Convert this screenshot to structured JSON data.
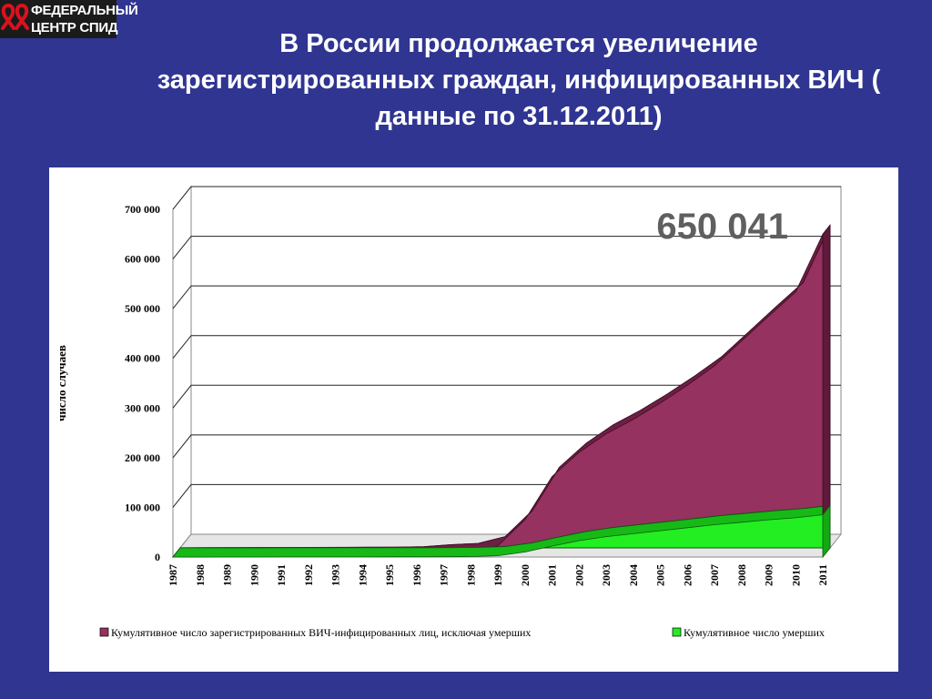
{
  "logo": {
    "line1": "ФЕДЕРАЛЬНЫЙ",
    "line2": "ЦЕНТР СПИД",
    "ribbon_icon": "red-aids-ribbon-icon"
  },
  "slide": {
    "title_line1": "В России продолжается увеличение",
    "title_line2": "зарегистрированных граждан, инфицированных ВИЧ (",
    "title_line3": "данные по 31.12.2011)"
  },
  "colors": {
    "background": "#2f3591",
    "living_series": "#95325f",
    "deceased_series": "#22ee22",
    "annotation": "#5f5f5f"
  },
  "chart_data": {
    "type": "area",
    "ylabel": "число случаев",
    "xlabel": "",
    "ylim": [
      0,
      700000
    ],
    "yticks": [
      0,
      100000,
      200000,
      300000,
      400000,
      500000,
      600000,
      700000
    ],
    "ytick_labels": [
      "0",
      "100 000",
      "200 000",
      "300 000",
      "400 000",
      "500 000",
      "600 000",
      "700 000"
    ],
    "grid": true,
    "stacked": true,
    "three_d": true,
    "legend_position": "bottom",
    "annotation": "650 041",
    "categories": [
      "1987",
      "1988",
      "1989",
      "1990",
      "1991",
      "1992",
      "1993",
      "1994",
      "1995",
      "1996",
      "1997",
      "1998",
      "1999",
      "2000",
      "2001",
      "2002",
      "2003",
      "2004",
      "2005",
      "2006",
      "2007",
      "2008",
      "2009",
      "2010",
      "2011"
    ],
    "series": [
      {
        "name": "Кумулятивное число зарегистрированных ВИЧ-инфицированных лиц, исключая умерших",
        "values": [
          100,
          300,
          500,
          600,
          700,
          800,
          900,
          1000,
          1100,
          2000,
          6000,
          8000,
          20000,
          65000,
          140000,
          178000,
          207000,
          230000,
          257000,
          287000,
          320000,
          365000,
          410000,
          455000,
          565000
        ]
      },
      {
        "name": "Кумулятивное число умерших",
        "values": [
          0,
          0,
          0,
          50,
          100,
          150,
          200,
          250,
          300,
          350,
          500,
          1000,
          2500,
          10000,
          22000,
          33000,
          41000,
          47000,
          53000,
          59000,
          65000,
          70000,
          75000,
          79000,
          85000
        ]
      }
    ]
  }
}
